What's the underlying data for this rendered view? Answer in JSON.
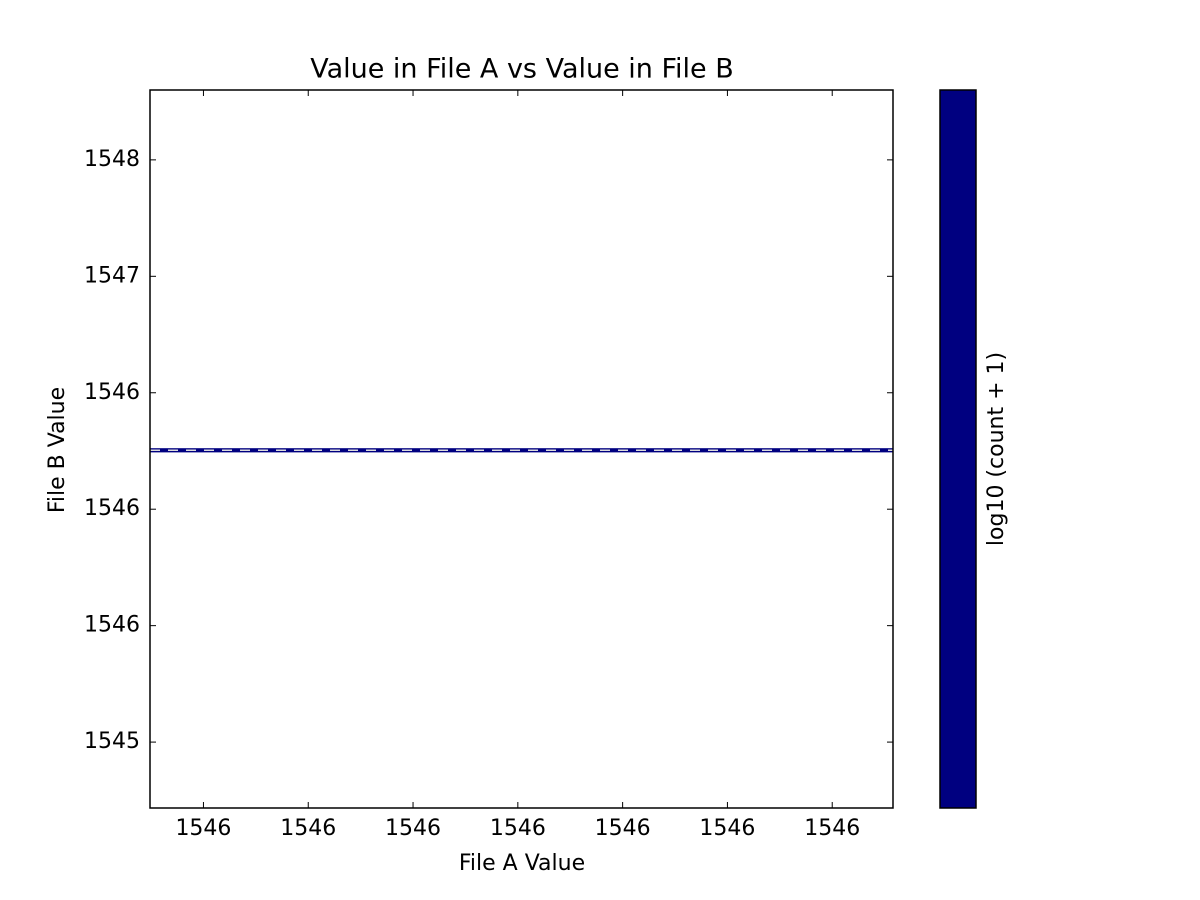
{
  "chart_data": {
    "type": "hist2d",
    "title": "Value in File A vs Value in File B",
    "x_label": "File A Value",
    "y_label": "File B Value",
    "colorbar_label": "log10 (count + 1)",
    "color": "#000080",
    "xlim": [
      1546.2149,
      1546.2858
    ],
    "xticks": [
      {
        "value": 1546.22,
        "label": "1546"
      },
      {
        "value": 1546.23,
        "label": "1546"
      },
      {
        "value": 1546.24,
        "label": "1546"
      },
      {
        "value": 1546.25,
        "label": "1546"
      },
      {
        "value": 1546.26,
        "label": "1546"
      },
      {
        "value": 1546.27,
        "label": "1546"
      },
      {
        "value": 1546.28,
        "label": "1546"
      }
    ],
    "ylim": [
      1544.717,
      1547.8
    ],
    "yticks": [
      {
        "value": 1545,
        "label": "1545"
      },
      {
        "value": 1545.5,
        "label": "1546"
      },
      {
        "value": 1546,
        "label": "1546"
      },
      {
        "value": 1546.5,
        "label": "1546"
      },
      {
        "value": 1547,
        "label": "1547"
      },
      {
        "value": 1547.5,
        "label": "1548"
      }
    ],
    "xbins": [
      1546.2149,
      1546.2858
    ],
    "ybins": [
      1546.244,
      1546.262
    ]
  }
}
